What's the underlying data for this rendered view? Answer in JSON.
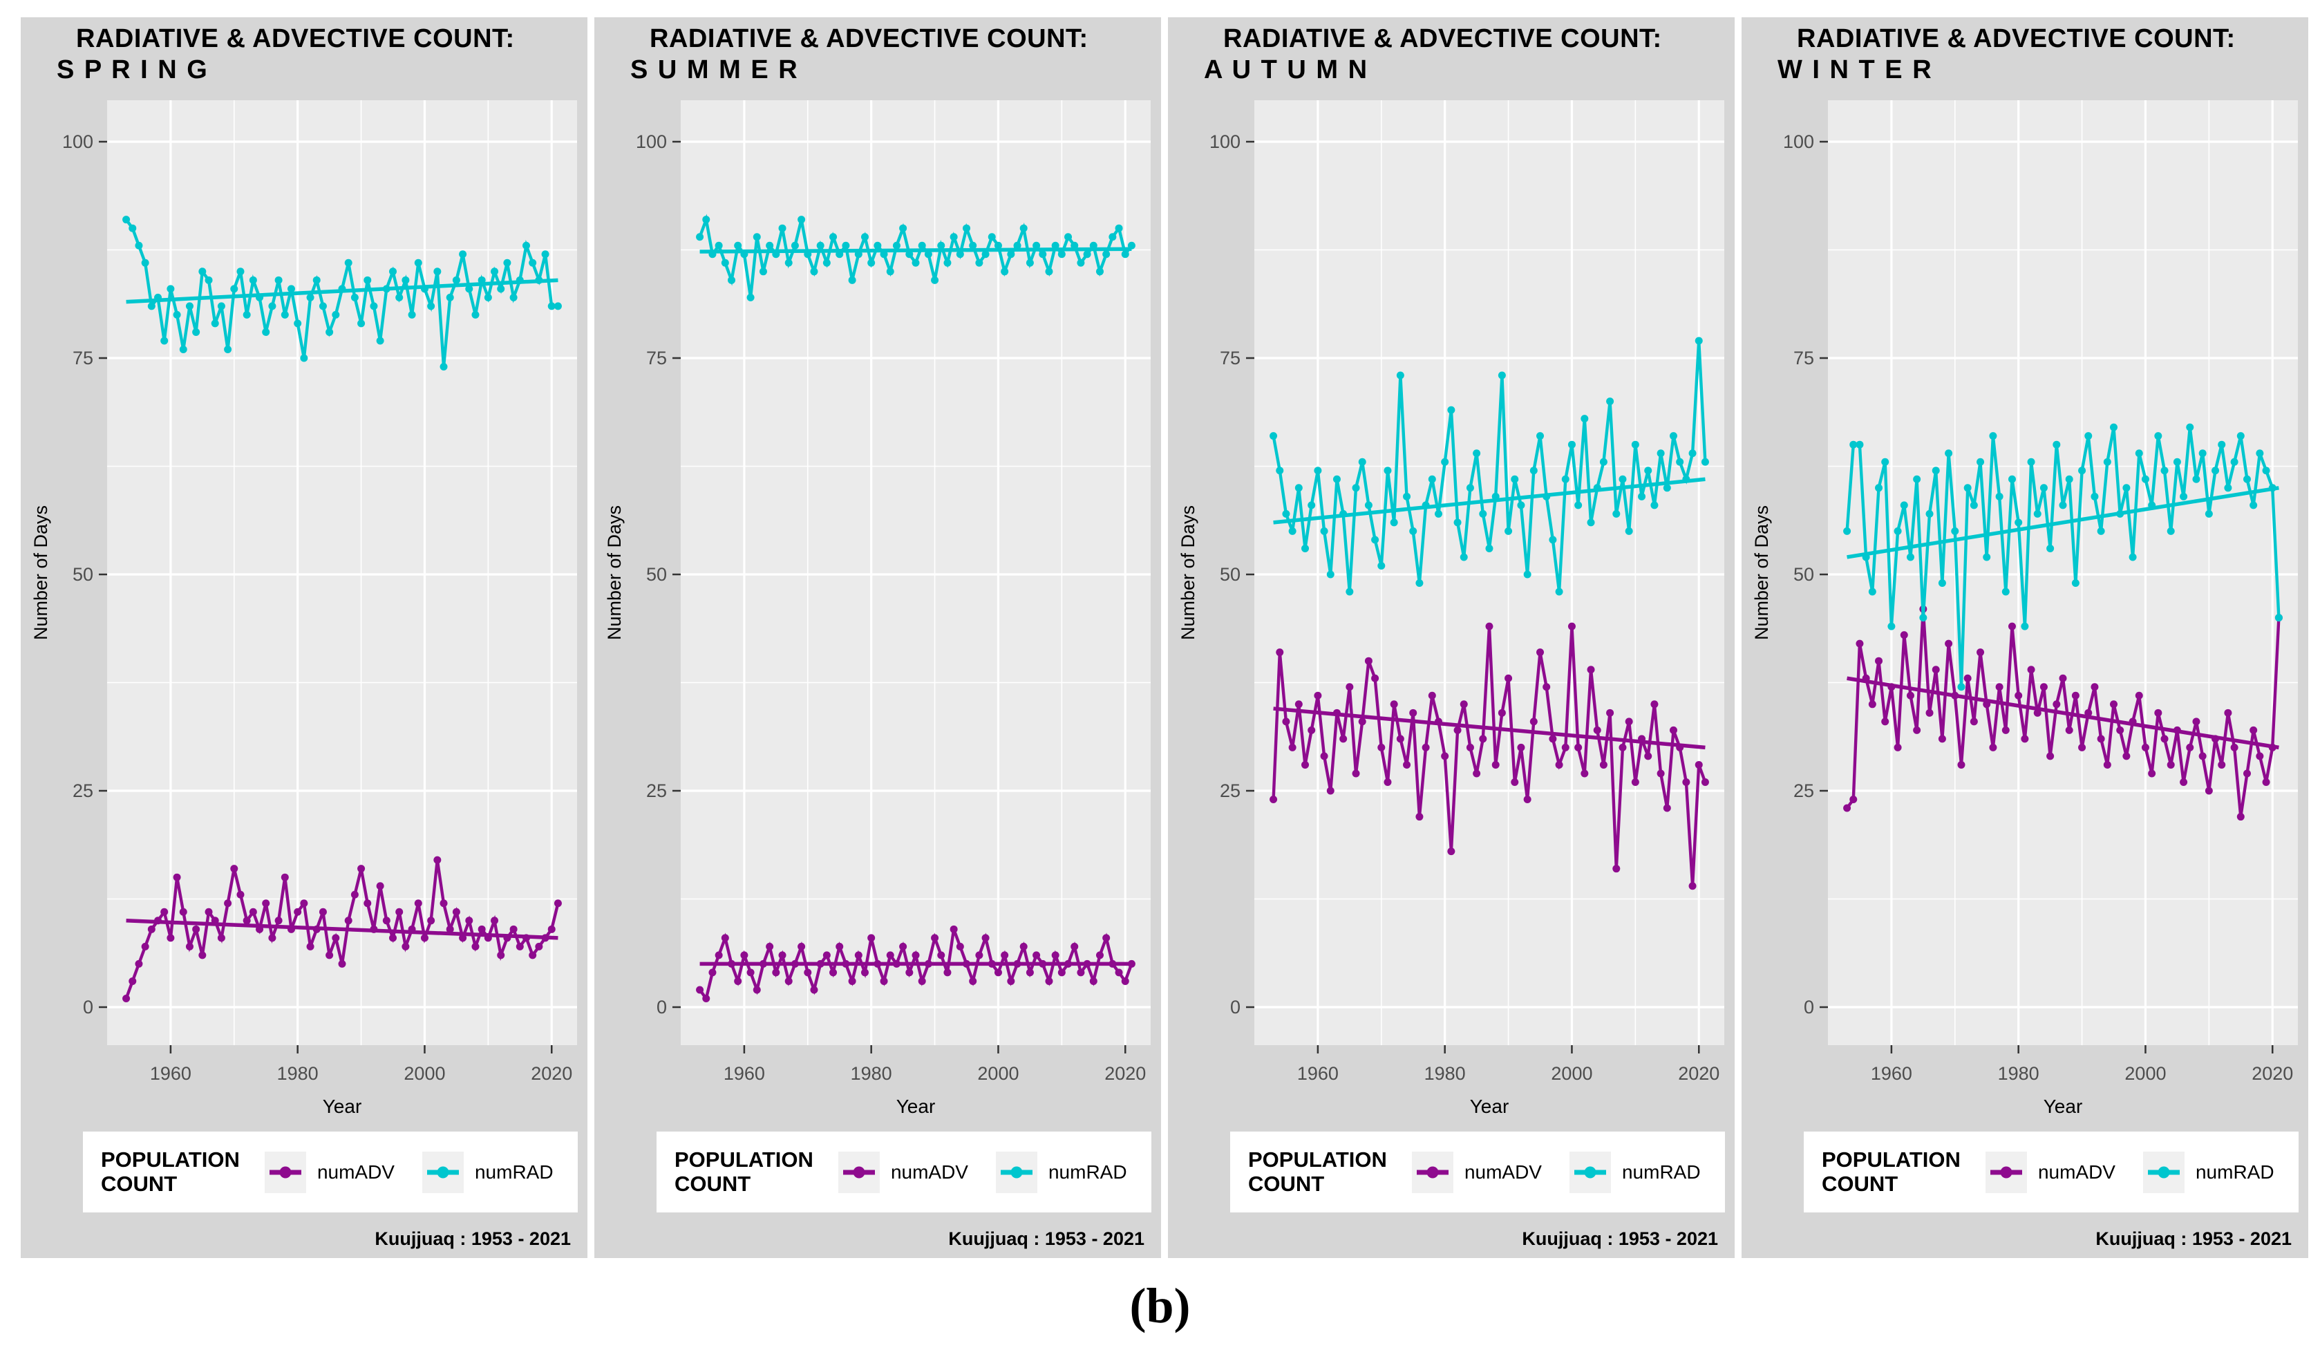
{
  "page": {
    "figure_label": "(b)"
  },
  "shared": {
    "title_line1": "RADIATIVE & ADVECTIVE COUNT:"
  },
  "caption": "Kuujjuaq :  1953 - 2021",
  "legend": {
    "title_line1": "POPULATION",
    "title_line2": "COUNT",
    "items": [
      {
        "label": "numADV"
      },
      {
        "label": "numRAD"
      }
    ]
  },
  "colors": {
    "numADV": "#8E0B8E",
    "numRAD": "#00C6CE",
    "panel_bg": "#EBEBEB",
    "figure_bg": "#D6D6D6",
    "grid": "#FFFFFF",
    "axis_text": "#4D4D4D",
    "tick_mark": "#333333",
    "axis_title": "#000000",
    "legend_bg": "#FFFFFF",
    "legend_key_bg": "#F0F0F0"
  },
  "axes": {
    "x_label": "Year",
    "y_label": "Number of Days",
    "x_ticks": [
      1960,
      1980,
      2000,
      2020
    ],
    "x_minor": [
      1950,
      1970,
      1990,
      2010
    ],
    "y_ticks": [
      0,
      25,
      50,
      75,
      100
    ],
    "y_minor": [
      12.5,
      37.5,
      62.5,
      87.5
    ],
    "x_range": [
      1950.0,
      2024.0
    ],
    "y_range": [
      -4.4,
      104.8
    ]
  },
  "chart_data": [
    {
      "type": "line",
      "season": "S P R I N G",
      "x_start": 1953,
      "x_end": 2021,
      "series": [
        {
          "name": "numADV",
          "trend": [
            10,
            8
          ],
          "values": [
            1,
            3,
            5,
            7,
            9,
            10,
            11,
            8,
            15,
            11,
            7,
            9,
            6,
            11,
            10,
            8,
            12,
            16,
            13,
            10,
            11,
            9,
            12,
            8,
            10,
            15,
            9,
            11,
            12,
            7,
            9,
            11,
            6,
            8,
            5,
            10,
            13,
            16,
            12,
            9,
            14,
            10,
            8,
            11,
            7,
            9,
            12,
            8,
            10,
            17,
            12,
            9,
            11,
            8,
            10,
            7,
            9,
            8,
            10,
            6,
            8,
            9,
            7,
            8,
            6,
            7,
            8,
            9,
            12
          ]
        },
        {
          "name": "numRAD",
          "trend": [
            81.5,
            84
          ],
          "values": [
            91,
            90,
            88,
            86,
            81,
            82,
            77,
            83,
            80,
            76,
            81,
            78,
            85,
            84,
            79,
            81,
            76,
            83,
            85,
            80,
            84,
            82,
            78,
            81,
            84,
            80,
            83,
            79,
            75,
            82,
            84,
            81,
            78,
            80,
            83,
            86,
            82,
            79,
            84,
            81,
            77,
            83,
            85,
            82,
            84,
            80,
            86,
            83,
            81,
            85,
            74,
            82,
            84,
            87,
            83,
            80,
            84,
            82,
            85,
            83,
            86,
            82,
            84,
            88,
            86,
            84,
            87,
            81,
            81
          ]
        }
      ]
    },
    {
      "type": "line",
      "season": "S U M M E R",
      "x_start": 1953,
      "x_end": 2021,
      "series": [
        {
          "name": "numADV",
          "trend": [
            5,
            5
          ],
          "values": [
            2,
            1,
            4,
            6,
            8,
            5,
            3,
            6,
            4,
            2,
            5,
            7,
            4,
            6,
            3,
            5,
            7,
            4,
            2,
            5,
            6,
            4,
            7,
            5,
            3,
            6,
            4,
            8,
            5,
            3,
            6,
            5,
            7,
            4,
            6,
            3,
            5,
            8,
            6,
            4,
            9,
            7,
            5,
            3,
            6,
            8,
            5,
            4,
            6,
            3,
            5,
            7,
            4,
            6,
            5,
            3,
            6,
            4,
            5,
            7,
            4,
            5,
            3,
            6,
            8,
            5,
            4,
            3,
            5
          ]
        },
        {
          "name": "numRAD",
          "trend": [
            87.3,
            87.6
          ],
          "values": [
            89,
            91,
            87,
            88,
            86,
            84,
            88,
            87,
            82,
            89,
            85,
            88,
            87,
            90,
            86,
            88,
            91,
            87,
            85,
            88,
            86,
            89,
            87,
            88,
            84,
            87,
            89,
            86,
            88,
            87,
            85,
            88,
            90,
            87,
            86,
            88,
            87,
            84,
            88,
            86,
            89,
            87,
            90,
            88,
            86,
            87,
            89,
            88,
            85,
            87,
            88,
            90,
            86,
            88,
            87,
            85,
            88,
            87,
            89,
            88,
            86,
            87,
            88,
            85,
            87,
            89,
            90,
            87,
            88
          ]
        }
      ]
    },
    {
      "type": "line",
      "season": "A U T U M N",
      "x_start": 1953,
      "x_end": 2021,
      "series": [
        {
          "name": "numADV",
          "trend": [
            34.5,
            30
          ],
          "values": [
            24,
            41,
            33,
            30,
            35,
            28,
            32,
            36,
            29,
            25,
            34,
            31,
            37,
            27,
            33,
            40,
            38,
            30,
            26,
            35,
            31,
            28,
            34,
            22,
            30,
            36,
            33,
            29,
            18,
            32,
            35,
            30,
            27,
            31,
            44,
            28,
            34,
            38,
            26,
            30,
            24,
            33,
            41,
            37,
            31,
            28,
            30,
            44,
            30,
            27,
            39,
            32,
            28,
            34,
            16,
            30,
            33,
            26,
            31,
            29,
            35,
            27,
            23,
            32,
            30,
            26,
            14,
            28,
            26
          ]
        },
        {
          "name": "numRAD",
          "trend": [
            56,
            61
          ],
          "values": [
            66,
            62,
            57,
            55,
            60,
            53,
            58,
            62,
            55,
            50,
            61,
            57,
            48,
            60,
            63,
            58,
            54,
            51,
            62,
            56,
            73,
            59,
            55,
            49,
            58,
            61,
            57,
            63,
            69,
            56,
            52,
            60,
            64,
            57,
            53,
            59,
            73,
            55,
            61,
            58,
            50,
            62,
            66,
            59,
            54,
            48,
            61,
            65,
            58,
            68,
            56,
            60,
            63,
            70,
            57,
            61,
            55,
            65,
            59,
            62,
            58,
            64,
            60,
            66,
            63,
            61,
            64,
            77,
            63
          ]
        }
      ]
    },
    {
      "type": "line",
      "season": "W I N T E R",
      "x_start": 1953,
      "x_end": 2021,
      "series": [
        {
          "name": "numADV",
          "trend": [
            38,
            30
          ],
          "values": [
            23,
            24,
            42,
            38,
            35,
            40,
            33,
            37,
            30,
            43,
            36,
            32,
            46,
            34,
            39,
            31,
            42,
            36,
            28,
            38,
            33,
            41,
            35,
            30,
            37,
            32,
            44,
            36,
            31,
            39,
            34,
            37,
            29,
            35,
            38,
            32,
            36,
            30,
            34,
            37,
            31,
            28,
            35,
            32,
            29,
            33,
            36,
            30,
            27,
            34,
            31,
            28,
            32,
            26,
            30,
            33,
            29,
            25,
            31,
            28,
            34,
            30,
            22,
            27,
            32,
            29,
            26,
            30,
            45
          ]
        },
        {
          "name": "numRAD",
          "trend": [
            52,
            60
          ],
          "values": [
            55,
            65,
            65,
            52,
            48,
            60,
            63,
            44,
            55,
            58,
            52,
            61,
            45,
            57,
            62,
            49,
            64,
            55,
            37,
            60,
            58,
            63,
            52,
            66,
            59,
            48,
            61,
            56,
            44,
            63,
            57,
            60,
            53,
            65,
            58,
            61,
            49,
            62,
            66,
            59,
            55,
            63,
            67,
            57,
            60,
            52,
            64,
            61,
            58,
            66,
            62,
            55,
            63,
            59,
            67,
            61,
            64,
            57,
            62,
            65,
            60,
            63,
            66,
            61,
            58,
            64,
            62,
            60,
            45
          ]
        }
      ]
    }
  ]
}
